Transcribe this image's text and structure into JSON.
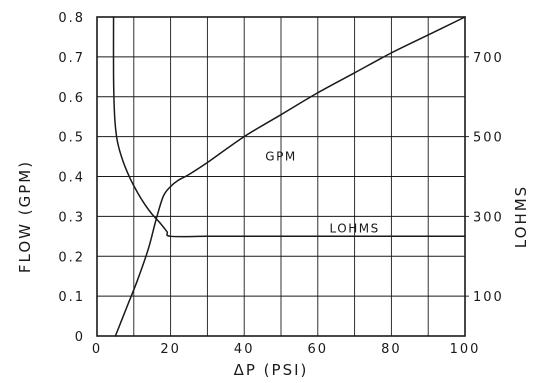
{
  "chart_data": {
    "type": "line",
    "grid": true,
    "xlabel": "ΔP (PSI)",
    "ylabel": "FLOW (GPM)",
    "y2label": "LOHMS",
    "xlim": [
      0,
      100
    ],
    "ylim": [
      0,
      0.8
    ],
    "y2lim": [
      0,
      800
    ],
    "x_ticks": [
      "0",
      "20",
      "40",
      "60",
      "80",
      "100"
    ],
    "y_ticks": [
      "0",
      "0.1",
      "0.2",
      "0.3",
      "0.4",
      "0.5",
      "0.6",
      "0.7",
      "0.8"
    ],
    "y2_ticks": [
      "100",
      "300",
      "500",
      "700"
    ],
    "series": [
      {
        "name": "GPM",
        "axis": "left",
        "x": [
          5,
          8,
          11,
          14,
          16,
          18,
          20,
          22,
          25,
          30,
          40,
          50,
          60,
          70,
          80,
          90,
          100
        ],
        "y": [
          0,
          0.07,
          0.14,
          0.22,
          0.29,
          0.35,
          0.375,
          0.39,
          0.405,
          0.435,
          0.5,
          0.555,
          0.61,
          0.66,
          0.71,
          0.755,
          0.8
        ]
      },
      {
        "name": "LOHMS",
        "axis": "right",
        "x": [
          4.5,
          4.5,
          4.8,
          5.5,
          7,
          9,
          11,
          13,
          15,
          17,
          19,
          20,
          30,
          40,
          50,
          60,
          70,
          80,
          90,
          100
        ],
        "y": [
          800,
          650,
          550,
          490,
          440,
          395,
          360,
          330,
          305,
          285,
          262,
          250,
          250,
          250,
          250,
          250,
          250,
          250,
          250,
          250
        ]
      }
    ],
    "annotations": [
      {
        "text": "GPM",
        "x": 50,
        "y": 0.44
      },
      {
        "text": "LOHMS",
        "x": 70,
        "y": 0.26
      }
    ]
  }
}
